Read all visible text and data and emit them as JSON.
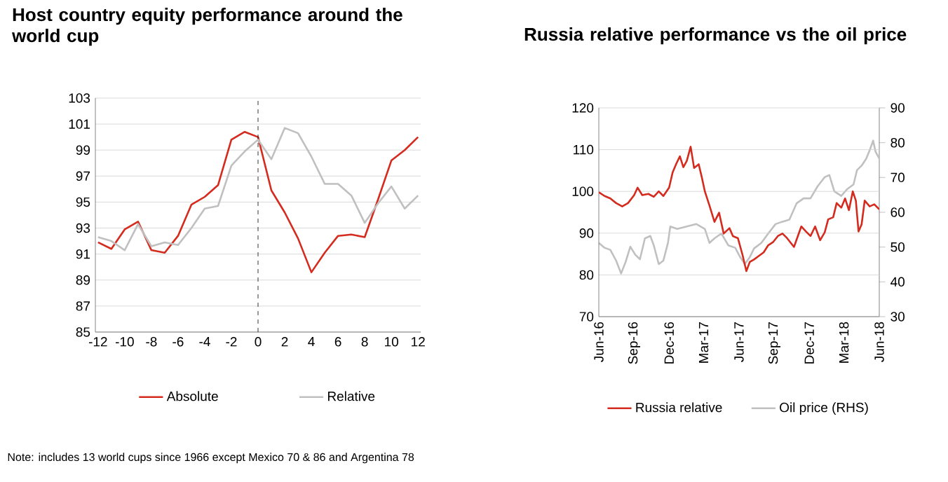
{
  "chart_data": [
    {
      "type": "line",
      "title": "Host country equity performance around the world cup",
      "x": [
        -12,
        -11,
        -10,
        -9,
        -8,
        -7,
        -6,
        -5,
        -4,
        -3,
        -2,
        -1,
        0,
        1,
        2,
        3,
        4,
        5,
        6,
        7,
        8,
        9,
        10,
        11,
        12
      ],
      "series": [
        {
          "name": "Absolute",
          "color": "#d52b1e",
          "values": [
            91.9,
            91.4,
            92.9,
            93.5,
            91.3,
            91.1,
            92.4,
            94.8,
            95.4,
            96.3,
            99.8,
            100.4,
            100.0,
            95.9,
            94.2,
            92.2,
            89.6,
            91.1,
            92.4,
            92.5,
            92.3,
            95.2,
            98.2,
            99.0,
            100.0
          ]
        },
        {
          "name": "Relative",
          "color": "#c0c0c0",
          "values": [
            92.3,
            92.0,
            91.3,
            93.3,
            91.6,
            91.9,
            91.7,
            93.0,
            94.5,
            94.7,
            97.8,
            98.9,
            99.8,
            98.3,
            100.7,
            100.3,
            98.5,
            96.4,
            96.4,
            95.5,
            93.4,
            94.9,
            96.2,
            94.5,
            95.5
          ]
        }
      ],
      "xlim": [
        -12.2,
        12.2
      ],
      "ylim": [
        85,
        103
      ],
      "xticks": [
        -12,
        -10,
        -8,
        -6,
        -4,
        -2,
        0,
        2,
        4,
        6,
        8,
        10,
        12
      ],
      "yticks": [
        85,
        87,
        89,
        91,
        93,
        95,
        97,
        99,
        101,
        103
      ],
      "grid": "y",
      "legend": "bottom",
      "ref_lines": [
        {
          "axis": "x",
          "value": 0,
          "color": "#000000",
          "line_style": "dashed"
        }
      ],
      "annotations": [
        "Note: includes 13 world cups since 1966 except Mexico 70 & 86 and Argentina 78"
      ]
    },
    {
      "type": "line",
      "title": "Russia relative performance vs the oil price",
      "series": [
        {
          "name": "Russia relative",
          "color": "#d52b1e",
          "x": [
            "2016-06-01",
            "2016-06-16",
            "2016-07-01",
            "2016-07-16",
            "2016-08-01",
            "2016-08-16",
            "2016-09-01",
            "2016-09-10",
            "2016-09-22",
            "2016-10-08",
            "2016-10-22",
            "2016-11-04",
            "2016-11-16",
            "2016-12-01",
            "2016-12-10",
            "2016-12-20",
            "2016-12-29",
            "2017-01-07",
            "2017-01-16",
            "2017-01-26",
            "2017-02-04",
            "2017-02-16",
            "2017-02-24",
            "2017-03-04",
            "2017-03-16",
            "2017-03-29",
            "2017-04-10",
            "2017-04-22",
            "2017-05-07",
            "2017-05-16",
            "2017-05-29",
            "2017-06-10",
            "2017-06-20",
            "2017-06-29",
            "2017-07-10",
            "2017-07-22",
            "2017-08-04",
            "2017-08-16",
            "2017-08-29",
            "2017-09-10",
            "2017-09-22",
            "2017-10-04",
            "2017-10-22",
            "2017-11-10",
            "2017-11-22",
            "2017-12-04",
            "2017-12-16",
            "2017-12-29",
            "2018-01-10",
            "2018-01-19",
            "2018-02-01",
            "2018-02-10",
            "2018-02-22",
            "2018-03-04",
            "2018-03-14",
            "2018-03-24",
            "2018-04-01",
            "2018-04-08",
            "2018-04-16",
            "2018-04-24",
            "2018-05-07",
            "2018-05-19",
            "2018-06-01"
          ],
          "values": [
            99.8,
            98.9,
            98.3,
            97.2,
            96.4,
            97.2,
            99.1,
            100.9,
            99.1,
            99.4,
            98.7,
            100.0,
            98.9,
            100.9,
            104.5,
            106.7,
            108.4,
            105.8,
            107.3,
            110.7,
            105.6,
            106.5,
            103.4,
            100.0,
            96.6,
            92.7,
            94.9,
            89.9,
            91.2,
            89.3,
            88.8,
            84.8,
            80.9,
            83.1,
            83.7,
            84.5,
            85.4,
            87.1,
            87.9,
            89.3,
            89.9,
            88.8,
            86.7,
            91.6,
            90.4,
            89.3,
            91.6,
            88.3,
            90.2,
            93.3,
            93.8,
            97.2,
            96.1,
            98.3,
            95.5,
            100.0,
            97.8,
            90.4,
            92.1,
            97.8,
            96.4,
            96.9,
            95.7
          ]
        },
        {
          "name": "Oil price (RHS)",
          "color": "#c0c0c0",
          "axis": "y2",
          "x": [
            "2016-06-01",
            "2016-06-16",
            "2016-07-01",
            "2016-07-16",
            "2016-07-29",
            "2016-08-10",
            "2016-08-22",
            "2016-09-04",
            "2016-09-16",
            "2016-09-29",
            "2016-10-13",
            "2016-10-22",
            "2016-11-04",
            "2016-11-16",
            "2016-11-28",
            "2016-12-04",
            "2016-12-22",
            "2017-01-16",
            "2017-02-10",
            "2017-03-04",
            "2017-03-16",
            "2017-03-29",
            "2017-04-16",
            "2017-05-04",
            "2017-05-22",
            "2017-06-04",
            "2017-06-16",
            "2017-06-29",
            "2017-07-10",
            "2017-07-29",
            "2017-08-16",
            "2017-09-04",
            "2017-09-22",
            "2017-10-10",
            "2017-10-29",
            "2017-11-16",
            "2017-12-04",
            "2017-12-22",
            "2018-01-10",
            "2018-01-22",
            "2018-02-04",
            "2018-02-22",
            "2018-03-10",
            "2018-03-26",
            "2018-04-04",
            "2018-04-16",
            "2018-04-28",
            "2018-05-08",
            "2018-05-16",
            "2018-05-22",
            "2018-06-01"
          ],
          "values": [
            51.2,
            49.8,
            49.2,
            46.1,
            42.4,
            45.8,
            50.1,
            47.8,
            46.5,
            52.5,
            53.2,
            50.5,
            45.1,
            46.1,
            51.2,
            55.9,
            55.2,
            55.9,
            56.6,
            55.2,
            51.2,
            52.5,
            53.9,
            50.5,
            49.8,
            47.1,
            45.1,
            47.1,
            49.6,
            51.2,
            53.9,
            56.6,
            57.3,
            57.9,
            62.6,
            64.0,
            64.0,
            67.4,
            70.1,
            70.7,
            66.0,
            64.7,
            66.7,
            68.0,
            72.1,
            73.4,
            75.4,
            78.1,
            80.6,
            77.5,
            75.4
          ]
        }
      ],
      "xlim": [
        "2016-06-01",
        "2018-06-01"
      ],
      "xticks": [
        {
          "value": "2016-06-01",
          "label": "Jun-16"
        },
        {
          "value": "2016-09-01",
          "label": "Sep-16"
        },
        {
          "value": "2016-12-01",
          "label": "Dec-16"
        },
        {
          "value": "2017-03-01",
          "label": "Mar-17"
        },
        {
          "value": "2017-06-01",
          "label": "Jun-17"
        },
        {
          "value": "2017-09-01",
          "label": "Sep-17"
        },
        {
          "value": "2017-12-01",
          "label": "Dec-17"
        },
        {
          "value": "2018-03-01",
          "label": "Mar-18"
        },
        {
          "value": "2018-06-01",
          "label": "Jun-18"
        }
      ],
      "ylim": [
        70,
        120
      ],
      "yticks": [
        70,
        80,
        90,
        100,
        110,
        120
      ],
      "y2lim": [
        30,
        90
      ],
      "y2ticks": [
        30,
        40,
        50,
        60,
        70,
        80,
        90
      ],
      "grid": "y",
      "legend": "bottom"
    }
  ]
}
